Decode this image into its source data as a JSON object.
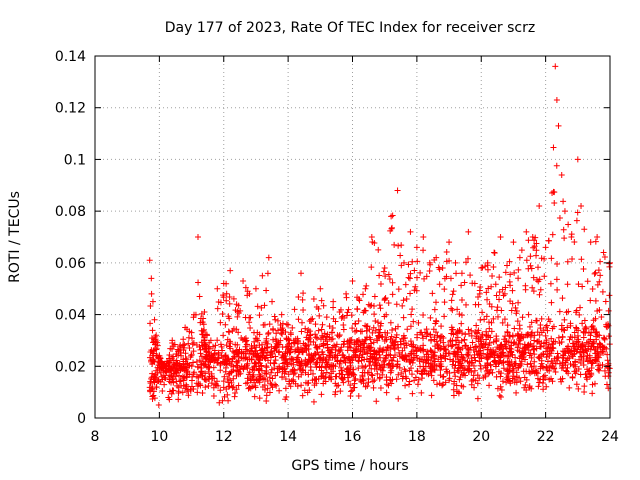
{
  "chart_data": {
    "type": "scatter",
    "title": "Day 177 of 2023, Rate Of TEC Index for receiver scrz",
    "xlabel": "GPS time / hours",
    "ylabel": "ROTI / TECUs",
    "xlim": [
      8,
      24
    ],
    "ylim": [
      0,
      0.14
    ],
    "x_ticks": [
      "8",
      "10",
      "12",
      "14",
      "16",
      "18",
      "20",
      "22",
      "24"
    ],
    "y_ticks": [
      "0",
      "0.02",
      "0.04",
      "0.06",
      "0.08",
      "0.1",
      "0.12",
      "0.14"
    ],
    "grid": true,
    "marker": "+",
    "marker_color": "#ff0000",
    "series": [
      {
        "name": "ROTI",
        "x": [
          9.7,
          9.75,
          9.8,
          9.85,
          9.9,
          9.95,
          10.0,
          10.1,
          10.2,
          10.4,
          10.6,
          10.8,
          11.0,
          11.2,
          11.25,
          11.4,
          11.6,
          11.8,
          12.0,
          12.2,
          12.4,
          12.6,
          12.8,
          13.0,
          13.2,
          13.4,
          13.5,
          13.6,
          13.8,
          14.0,
          14.2,
          14.4,
          14.6,
          14.8,
          15.0,
          15.2,
          15.4,
          15.6,
          15.8,
          16.0,
          16.2,
          16.4,
          16.6,
          16.8,
          17.0,
          17.2,
          17.4,
          17.6,
          17.8,
          18.0,
          18.2,
          18.4,
          18.6,
          18.8,
          19.0,
          19.2,
          19.4,
          19.6,
          19.8,
          20.0,
          20.2,
          20.4,
          20.6,
          20.8,
          21.0,
          21.2,
          21.4,
          21.6,
          21.8,
          22.0,
          22.2,
          22.3,
          22.35,
          22.4,
          22.5,
          22.6,
          22.8,
          23.0,
          23.1,
          23.2,
          23.4,
          23.6,
          23.8,
          24.0
        ],
        "y": [
          0.061,
          0.054,
          0.045,
          0.038,
          0.032,
          0.028,
          0.024,
          0.021,
          0.02,
          0.03,
          0.026,
          0.035,
          0.033,
          0.07,
          0.047,
          0.041,
          0.03,
          0.05,
          0.052,
          0.057,
          0.044,
          0.053,
          0.048,
          0.05,
          0.055,
          0.062,
          0.045,
          0.038,
          0.04,
          0.036,
          0.042,
          0.056,
          0.033,
          0.046,
          0.05,
          0.039,
          0.045,
          0.041,
          0.048,
          0.053,
          0.046,
          0.05,
          0.07,
          0.065,
          0.058,
          0.078,
          0.088,
          0.06,
          0.072,
          0.066,
          0.07,
          0.06,
          0.062,
          0.058,
          0.068,
          0.06,
          0.056,
          0.072,
          0.052,
          0.058,
          0.06,
          0.064,
          0.07,
          0.059,
          0.068,
          0.062,
          0.072,
          0.07,
          0.082,
          0.066,
          0.087,
          0.136,
          0.123,
          0.113,
          0.094,
          0.08,
          0.07,
          0.1,
          0.082,
          0.073,
          0.068,
          0.07,
          0.064,
          0.06
        ],
        "baseline": [
          0.018,
          0.019,
          0.019,
          0.02,
          0.02,
          0.02,
          0.019,
          0.019,
          0.018,
          0.018,
          0.018,
          0.019,
          0.019,
          0.019,
          0.019,
          0.02,
          0.02,
          0.02,
          0.02,
          0.02,
          0.021,
          0.021,
          0.021,
          0.021,
          0.021,
          0.021,
          0.021,
          0.021,
          0.021,
          0.021,
          0.021,
          0.021,
          0.021,
          0.021,
          0.021,
          0.021,
          0.021,
          0.021,
          0.021,
          0.021,
          0.022,
          0.022,
          0.022,
          0.022,
          0.022,
          0.023,
          0.023,
          0.023,
          0.023,
          0.023,
          0.023,
          0.023,
          0.023,
          0.023,
          0.023,
          0.023,
          0.023,
          0.023,
          0.023,
          0.023,
          0.023,
          0.023,
          0.023,
          0.023,
          0.023,
          0.024,
          0.024,
          0.024,
          0.024,
          0.024,
          0.025,
          0.025,
          0.025,
          0.025,
          0.025,
          0.025,
          0.025,
          0.025,
          0.025,
          0.025,
          0.024,
          0.024,
          0.024,
          0.023
        ],
        "min": 0.005
      }
    ]
  }
}
